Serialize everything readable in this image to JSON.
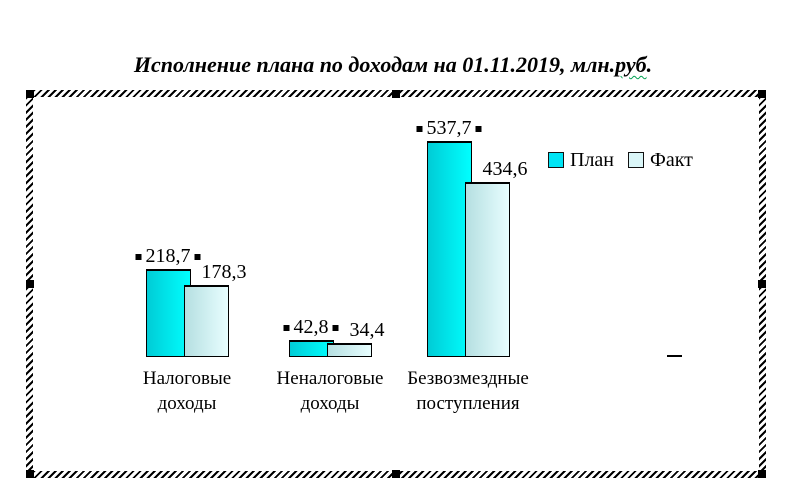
{
  "title": {
    "prefix": "Исполнение плана по доходам на 01.11.2019, млн.",
    "misspelled_word": "руб",
    "suffix": ".",
    "full": "Исполнение плана по доходам на 01.11.2019, млн.руб.",
    "spellcheck_color": "#00a050"
  },
  "chart_data": {
    "type": "bar",
    "title": "Исполнение плана по доходам на 01.11.2019, млн.руб.",
    "categories": [
      "Налоговые доходы",
      "Неналоговые доходы",
      "Безвозмездные поступления"
    ],
    "categories_display": [
      [
        "Налоговые",
        "доходы"
      ],
      [
        "Неналоговые",
        "доходы"
      ],
      [
        "Безвозмездные",
        "поступления"
      ]
    ],
    "series": [
      {
        "name": "План",
        "values": [
          218.7,
          42.8,
          537.7
        ],
        "labels": [
          "218,7",
          "42,8",
          "537,7"
        ],
        "color_start": "#00ccd6",
        "color_end": "#00ffff",
        "legend_color": "#00e4f4",
        "labels_selected": true
      },
      {
        "name": "Факт",
        "values": [
          178.3,
          34.4,
          434.6
        ],
        "labels": [
          "178,3",
          "34,4",
          "434,6"
        ],
        "color_start": "#b5dfe1",
        "color_end": "#e8feff",
        "legend_color": "#daf6f8",
        "labels_selected": false
      }
    ],
    "ylim": [
      0,
      540
    ],
    "grid": false,
    "data_labels": true,
    "decimal_separator": ",",
    "legend_position": "right",
    "xlabel": "",
    "ylabel": ""
  },
  "frame": {
    "style": "hatched-selection-border",
    "handle_color": "#000000"
  }
}
